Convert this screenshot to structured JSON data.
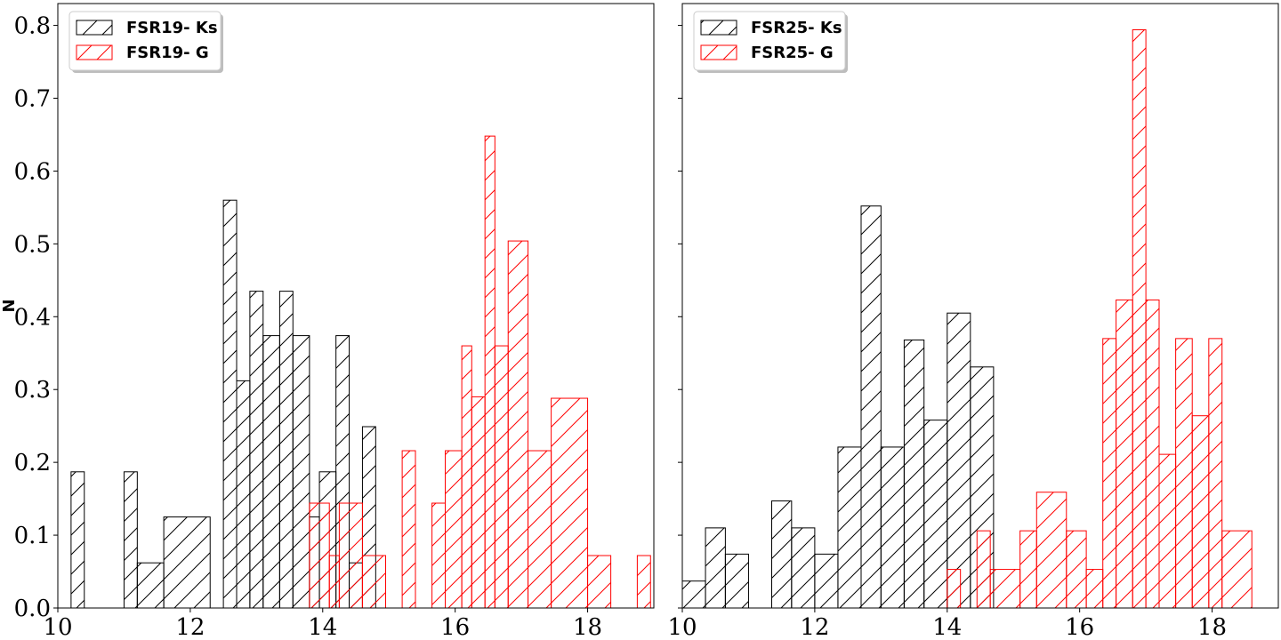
{
  "chart_data": [
    {
      "type": "histogram",
      "ylabel": "N",
      "xlim": [
        10,
        19
      ],
      "ylim": [
        0,
        0.83
      ],
      "xticks": [
        10,
        12,
        14,
        16,
        18
      ],
      "yticks": [
        0.0,
        0.1,
        0.2,
        0.3,
        0.4,
        0.5,
        0.6,
        0.7,
        0.8
      ],
      "legend_position": "top-left",
      "series": [
        {
          "name": "FSR19- Ks",
          "color": "#000000",
          "hatch": "/",
          "edges": [
            10.2,
            10.4,
            10.6,
            10.8,
            11.0,
            11.2,
            11.4,
            11.6,
            11.8,
            12.0,
            12.2,
            12.4,
            12.6,
            12.8,
            13.0,
            13.2,
            13.4,
            13.6,
            13.8,
            14.0,
            14.2,
            14.4,
            14.6,
            14.8
          ],
          "values": [
            0.187,
            0,
            0,
            0,
            0.187,
            0.062,
            0.062,
            0.125,
            0.125,
            0.125,
            0,
            0.56,
            0.312,
            0.435,
            0.374,
            0.435,
            0.374,
            0.125,
            0.187,
            0.374,
            0.062,
            0.249,
            0
          ]
        },
        {
          "name": "FSR19- G",
          "color": "#ff0000",
          "hatch": "/",
          "edges": [
            13.81,
            14.17,
            14.53,
            14.89,
            15.25,
            15.61,
            15.97,
            16.33,
            16.69,
            17.05,
            17.41,
            17.77,
            18.13,
            18.49,
            18.85
          ],
          "values": [
            0.144,
            0.144,
            0.072,
            0.216,
            0.144,
            0.36,
            0.29,
            0.648,
            0.36,
            0.504,
            0.216,
            0.288,
            0.072,
            0.072
          ],
          "bin_value_pattern": "variable-width"
        }
      ]
    },
    {
      "type": "histogram",
      "ylabel": "",
      "xlim": [
        10,
        19
      ],
      "ylim": [
        0,
        0.83
      ],
      "xticks": [
        10,
        12,
        14,
        16,
        18
      ],
      "legend_position": "top-left",
      "series": [
        {
          "name": "FSR25- Ks",
          "color": "#000000",
          "hatch": "/"
        },
        {
          "name": "FSR25- G",
          "color": "#ff0000",
          "hatch": "/"
        }
      ]
    }
  ],
  "panels_draw": [
    {
      "series_bins": [
        [
          [
            10.2,
            10.4,
            0.187
          ],
          [
            11.0,
            11.2,
            0.187
          ],
          [
            11.2,
            11.6,
            0.062
          ],
          [
            11.6,
            12.3,
            0.125
          ],
          [
            12.5,
            12.7,
            0.56
          ],
          [
            12.7,
            12.9,
            0.312
          ],
          [
            12.9,
            13.1,
            0.435
          ],
          [
            13.1,
            13.35,
            0.374
          ],
          [
            13.35,
            13.55,
            0.435
          ],
          [
            13.55,
            13.8,
            0.374
          ],
          [
            13.8,
            13.95,
            0.125
          ],
          [
            13.95,
            14.2,
            0.187
          ],
          [
            14.2,
            14.4,
            0.374
          ],
          [
            14.4,
            14.6,
            0.062
          ],
          [
            14.6,
            14.8,
            0.249
          ]
        ],
        [
          [
            13.8,
            14.1,
            0.144
          ],
          [
            14.1,
            14.25,
            0.072
          ],
          [
            14.25,
            14.6,
            0.144
          ],
          [
            14.6,
            14.95,
            0.072
          ],
          [
            15.2,
            15.4,
            0.216
          ],
          [
            15.65,
            15.85,
            0.144
          ],
          [
            15.85,
            16.1,
            0.216
          ],
          [
            16.1,
            16.25,
            0.36
          ],
          [
            16.25,
            16.45,
            0.29
          ],
          [
            16.45,
            16.6,
            0.648
          ],
          [
            16.6,
            16.8,
            0.36
          ],
          [
            16.8,
            17.1,
            0.504
          ],
          [
            17.1,
            17.45,
            0.216
          ],
          [
            17.45,
            18.0,
            0.288
          ],
          [
            18.0,
            18.35,
            0.072
          ],
          [
            18.75,
            18.95,
            0.072
          ]
        ]
      ]
    },
    {
      "series_bins": [
        [
          [
            10.0,
            10.35,
            0.037
          ],
          [
            10.35,
            10.65,
            0.11
          ],
          [
            10.65,
            11.0,
            0.074
          ],
          [
            11.35,
            11.65,
            0.147
          ],
          [
            11.65,
            12.0,
            0.11
          ],
          [
            12.0,
            12.35,
            0.074
          ],
          [
            12.35,
            12.7,
            0.221
          ],
          [
            12.7,
            13.0,
            0.552
          ],
          [
            13.0,
            13.35,
            0.221
          ],
          [
            13.35,
            13.65,
            0.368
          ],
          [
            13.65,
            14.0,
            0.258
          ],
          [
            14.0,
            14.35,
            0.405
          ],
          [
            14.35,
            14.7,
            0.331
          ]
        ],
        [
          [
            14.0,
            14.2,
            0.053
          ],
          [
            14.45,
            14.65,
            0.106
          ],
          [
            14.65,
            15.1,
            0.053
          ],
          [
            15.1,
            15.35,
            0.106
          ],
          [
            15.35,
            15.8,
            0.159
          ],
          [
            15.8,
            16.1,
            0.106
          ],
          [
            16.1,
            16.35,
            0.053
          ],
          [
            16.35,
            16.55,
            0.37
          ],
          [
            16.55,
            16.8,
            0.423
          ],
          [
            16.8,
            17.0,
            0.794
          ],
          [
            17.0,
            17.2,
            0.423
          ],
          [
            17.2,
            17.45,
            0.211
          ],
          [
            17.45,
            17.7,
            0.37
          ],
          [
            17.7,
            17.95,
            0.264
          ],
          [
            17.95,
            18.15,
            0.37
          ],
          [
            18.15,
            18.6,
            0.106
          ]
        ]
      ]
    }
  ]
}
